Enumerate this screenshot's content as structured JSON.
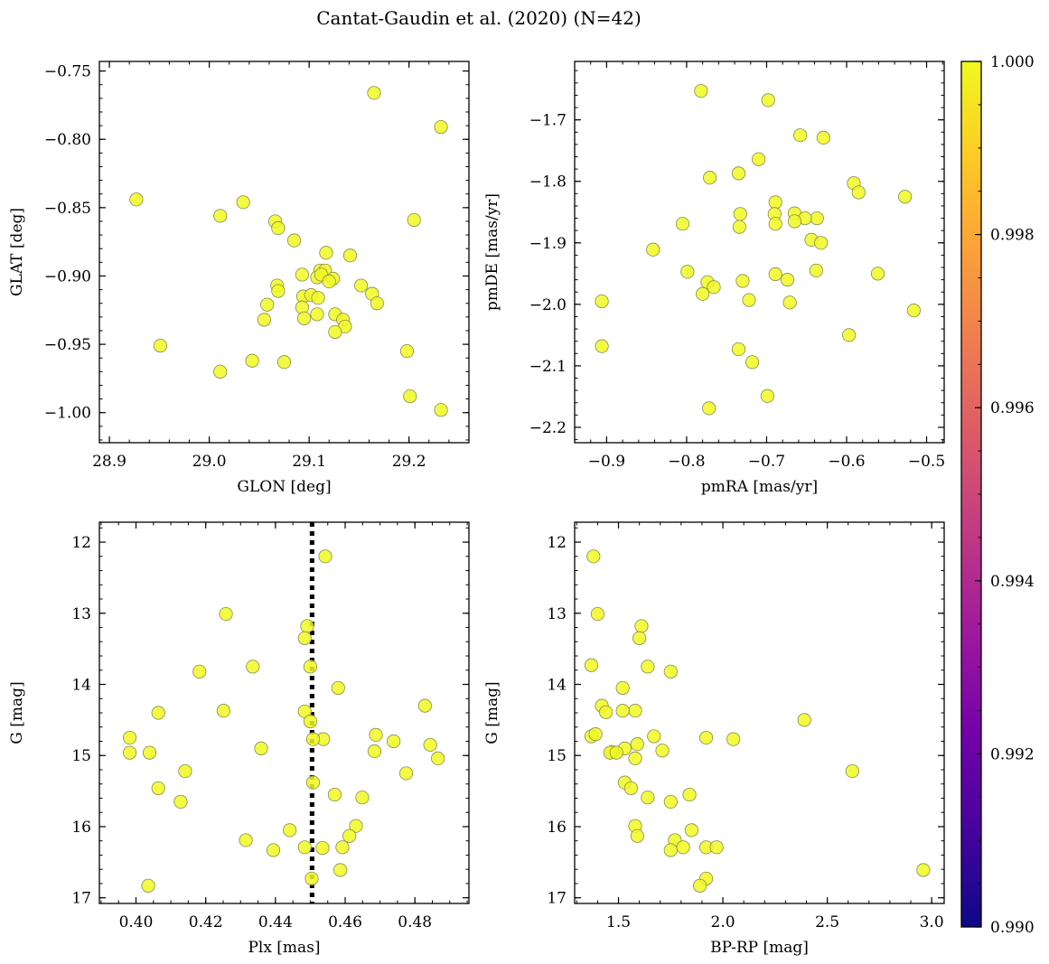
{
  "title": "Cantat-Gaudin et al. (2020) (N=42)",
  "colors": {
    "point": "#f0f921",
    "point_edge": "#8a8a55",
    "vline": "#000000",
    "cmap": [
      "#0d0887",
      "#46039f",
      "#7201a8",
      "#9c179e",
      "#bd3786",
      "#d8576b",
      "#ed7953",
      "#fb9f3a",
      "#fdca26",
      "#f0f921"
    ]
  },
  "colorbar": {
    "min": 0.99,
    "max": 1.0,
    "ticks": [
      0.99,
      0.992,
      0.994,
      0.996,
      0.998,
      1.0
    ],
    "tick_labels": [
      "0.990",
      "0.992",
      "0.994",
      "0.996",
      "0.998",
      "1.000"
    ]
  },
  "chart_data": [
    {
      "type": "scatter",
      "xlabel": "GLON [deg]",
      "ylabel": "GLAT [deg]",
      "xlim": [
        28.89,
        29.26
      ],
      "ylim": [
        -1.022,
        -0.743
      ],
      "xticks": [
        28.9,
        29.0,
        29.1,
        29.2
      ],
      "xtick_labels": [
        "28.9",
        "29.0",
        "29.1",
        "29.2"
      ],
      "yticks": [
        -1.0,
        -0.95,
        -0.9,
        -0.85,
        -0.8,
        -0.75
      ],
      "ytick_labels": [
        "−1.00",
        "−0.95",
        "−0.90",
        "−0.85",
        "−0.80",
        "−0.75"
      ],
      "minor_x": 0.02,
      "minor_y": 0.01,
      "x": [
        28.927,
        29.165,
        29.232,
        29.011,
        29.034,
        29.205,
        29.066,
        29.069,
        29.085,
        29.117,
        29.141,
        29.111,
        29.116,
        29.108,
        29.112,
        29.124,
        29.093,
        29.068,
        29.069,
        29.152,
        29.163,
        29.058,
        29.094,
        29.102,
        29.109,
        29.093,
        29.095,
        29.126,
        29.134,
        29.136,
        29.126,
        29.055,
        28.951,
        29.198,
        29.043,
        29.075,
        29.011,
        29.201,
        29.232,
        29.108,
        29.12,
        29.168
      ],
      "y": [
        -0.844,
        -0.766,
        -0.791,
        -0.856,
        -0.846,
        -0.859,
        -0.86,
        -0.865,
        -0.874,
        -0.883,
        -0.885,
        -0.896,
        -0.896,
        -0.901,
        -0.899,
        -0.902,
        -0.899,
        -0.907,
        -0.911,
        -0.907,
        -0.913,
        -0.921,
        -0.915,
        -0.914,
        -0.916,
        -0.923,
        -0.931,
        -0.928,
        -0.932,
        -0.937,
        -0.941,
        -0.932,
        -0.951,
        -0.955,
        -0.962,
        -0.963,
        -0.97,
        -0.988,
        -0.998,
        -0.928,
        -0.904,
        -0.92
      ]
    },
    {
      "type": "scatter",
      "xlabel": "pmRA [mas/yr]",
      "ylabel": "pmDE [mas/yr]",
      "xlim": [
        -0.94,
        -0.478
      ],
      "ylim": [
        -2.225,
        -1.605
      ],
      "xticks": [
        -0.9,
        -0.8,
        -0.7,
        -0.6,
        -0.5
      ],
      "xtick_labels": [
        "−0.9",
        "−0.8",
        "−0.7",
        "−0.6",
        "−0.5"
      ],
      "yticks": [
        -2.2,
        -2.1,
        -2.0,
        -1.9,
        -1.8,
        -1.7
      ],
      "ytick_labels": [
        "−2.2",
        "−2.1",
        "−2.0",
        "−1.9",
        "−1.8",
        "−1.7"
      ],
      "minor_x": 0.02,
      "minor_y": 0.02,
      "x": [
        -0.782,
        -0.698,
        -0.658,
        -0.629,
        -0.71,
        -0.771,
        -0.735,
        -0.591,
        -0.585,
        -0.527,
        -0.689,
        -0.733,
        -0.69,
        -0.665,
        -0.637,
        -0.652,
        -0.665,
        -0.805,
        -0.689,
        -0.734,
        -0.842,
        -0.644,
        -0.632,
        -0.799,
        -0.689,
        -0.638,
        -0.674,
        -0.561,
        -0.774,
        -0.766,
        -0.78,
        -0.73,
        -0.722,
        -0.906,
        -0.671,
        -0.516,
        -0.906,
        -0.597,
        -0.735,
        -0.718,
        -0.699,
        -0.772
      ],
      "y": [
        -1.653,
        -1.668,
        -1.725,
        -1.729,
        -1.764,
        -1.794,
        -1.787,
        -1.803,
        -1.818,
        -1.825,
        -1.834,
        -1.853,
        -1.853,
        -1.852,
        -1.86,
        -1.86,
        -1.865,
        -1.869,
        -1.869,
        -1.874,
        -1.911,
        -1.895,
        -1.9,
        -1.947,
        -1.951,
        -1.945,
        -1.96,
        -1.95,
        -1.964,
        -1.972,
        -1.983,
        -1.962,
        -1.993,
        -1.995,
        -1.997,
        -2.01,
        -2.068,
        -2.05,
        -2.073,
        -2.094,
        -2.149,
        -2.169
      ]
    },
    {
      "type": "scatter",
      "xlabel": "Plx [mas]",
      "ylabel": "G [mag]",
      "xlim": [
        0.3895,
        0.4955
      ],
      "ylim": [
        17.08,
        11.72
      ],
      "xticks": [
        0.4,
        0.42,
        0.44,
        0.46,
        0.48
      ],
      "xtick_labels": [
        "0.40",
        "0.42",
        "0.44",
        "0.46",
        "0.48"
      ],
      "yticks": [
        12,
        13,
        14,
        15,
        16,
        17
      ],
      "ytick_labels": [
        "12",
        "13",
        "14",
        "15",
        "16",
        "17"
      ],
      "minor_x": 0.005,
      "minor_y": 0.2,
      "vline": 0.4505,
      "x": [
        0.4543,
        0.4258,
        0.4491,
        0.4484,
        0.4335,
        0.4182,
        0.458,
        0.4251,
        0.4484,
        0.4064,
        0.4829,
        0.45,
        0.4688,
        0.4739,
        0.4844,
        0.4684,
        0.4359,
        0.4039,
        0.4537,
        0.4508,
        0.3982,
        0.4866,
        0.4141,
        0.4508,
        0.4064,
        0.4775,
        0.457,
        0.4649,
        0.4128,
        0.4631,
        0.4441,
        0.4612,
        0.4315,
        0.4592,
        0.4394,
        0.4484,
        0.4535,
        0.4586,
        0.4504,
        0.4035,
        0.45,
        0.3982
      ],
      "y": [
        12.2,
        13.01,
        13.18,
        13.35,
        13.75,
        13.82,
        14.05,
        14.37,
        14.38,
        14.4,
        14.3,
        14.52,
        14.71,
        14.8,
        14.85,
        14.94,
        14.9,
        14.96,
        14.77,
        14.77,
        14.75,
        15.04,
        15.22,
        15.38,
        15.46,
        15.25,
        15.55,
        15.59,
        15.65,
        15.99,
        16.05,
        16.13,
        16.19,
        16.29,
        16.33,
        16.29,
        16.3,
        16.61,
        16.73,
        16.83,
        13.75,
        14.96
      ]
    },
    {
      "type": "scatter",
      "xlabel": "BP-RP [mag]",
      "ylabel": "G [mag]",
      "xlim": [
        1.29,
        3.06
      ],
      "ylim": [
        17.08,
        11.72
      ],
      "xticks": [
        1.5,
        2.0,
        2.5,
        3.0
      ],
      "xtick_labels": [
        "1.5",
        "2.0",
        "2.5",
        "3.0"
      ],
      "yticks": [
        12,
        13,
        14,
        15,
        16,
        17
      ],
      "ytick_labels": [
        "12",
        "13",
        "14",
        "15",
        "16",
        "17"
      ],
      "minor_x": 0.1,
      "minor_y": 0.2,
      "x": [
        1.38,
        1.4,
        1.61,
        1.6,
        1.37,
        1.64,
        1.75,
        1.52,
        1.42,
        1.58,
        1.44,
        1.52,
        1.37,
        1.39,
        1.67,
        1.92,
        2.05,
        2.39,
        1.47,
        1.53,
        1.59,
        1.46,
        1.49,
        1.71,
        1.58,
        2.62,
        1.53,
        1.56,
        1.64,
        1.75,
        1.84,
        1.58,
        1.85,
        1.59,
        1.77,
        1.81,
        1.92,
        1.97,
        1.75,
        2.96,
        1.92,
        1.89
      ],
      "y": [
        12.2,
        13.01,
        13.18,
        13.35,
        13.73,
        13.75,
        13.82,
        14.05,
        14.3,
        14.37,
        14.39,
        14.37,
        14.73,
        14.7,
        14.73,
        14.75,
        14.77,
        14.5,
        14.95,
        14.9,
        14.84,
        14.96,
        14.96,
        14.93,
        15.04,
        15.22,
        15.38,
        15.46,
        15.59,
        15.65,
        15.55,
        15.99,
        16.05,
        16.13,
        16.19,
        16.29,
        16.29,
        16.29,
        16.33,
        16.61,
        16.73,
        16.83
      ]
    }
  ]
}
